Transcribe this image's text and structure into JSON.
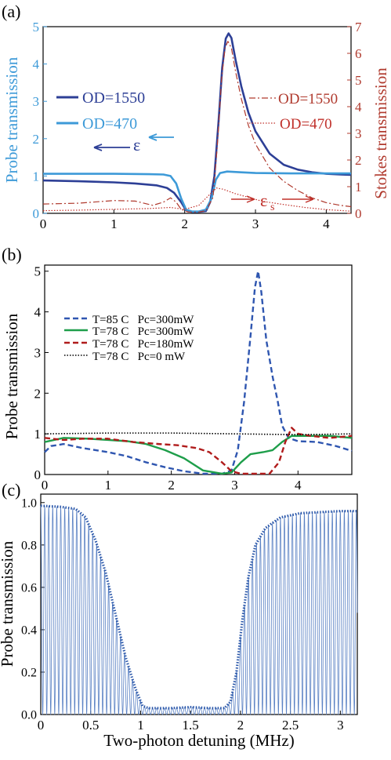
{
  "colors": {
    "dark_blue": "#2d3f96",
    "light_blue": "#3d9ad8",
    "dark_red": "#b03a2e",
    "red": "#c0302a",
    "green": "#1e9e4a",
    "dashed_blue": "#2f56b0",
    "dashed_red": "#b01c1c",
    "black": "#000000",
    "trace_blue": "#5b82c4",
    "envelope_blue": "#2855a8"
  },
  "chart_data": [
    {
      "type": "line",
      "panel_label": "(a)",
      "xlabel": "",
      "ylabel_left": "Probe transmission",
      "ylabel_right": "Stokes  transmission",
      "xlim": [
        0,
        4.35
      ],
      "ylim_left": [
        0,
        5
      ],
      "ylim_right": [
        0,
        7
      ],
      "x_ticks": [
        "0",
        "1",
        "2",
        "3",
        "4"
      ],
      "y_ticks_left": [
        "0",
        "1",
        "2",
        "3",
        "4",
        "5"
      ],
      "y_ticks_right": [
        "0",
        "1",
        "2",
        "3",
        "4",
        "5",
        "6",
        "7"
      ],
      "legend_left": [
        "OD=1550",
        "OD=470"
      ],
      "legend_right": [
        "OD=1550",
        "OD=470"
      ],
      "annotations": {
        "probe_arrow": "ε",
        "stokes_arrow": "ε",
        "stokes_sub": "s"
      },
      "series": [
        {
          "name": "OD=1550",
          "axis": "left",
          "style": "solid",
          "color_key": "dark_blue",
          "points": [
            [
              0,
              0.88
            ],
            [
              0.5,
              0.86
            ],
            [
              1.0,
              0.83
            ],
            [
              1.3,
              0.8
            ],
            [
              1.6,
              0.75
            ],
            [
              1.75,
              0.68
            ],
            [
              1.85,
              0.55
            ],
            [
              1.95,
              0.3
            ],
            [
              2.02,
              0.08
            ],
            [
              2.1,
              0.04
            ],
            [
              2.2,
              0.04
            ],
            [
              2.3,
              0.06
            ],
            [
              2.36,
              0.3
            ],
            [
              2.42,
              1.0
            ],
            [
              2.48,
              2.5
            ],
            [
              2.53,
              3.9
            ],
            [
              2.58,
              4.68
            ],
            [
              2.62,
              4.82
            ],
            [
              2.66,
              4.7
            ],
            [
              2.72,
              4.1
            ],
            [
              2.8,
              3.4
            ],
            [
              2.9,
              2.7
            ],
            [
              3.0,
              2.2
            ],
            [
              3.2,
              1.6
            ],
            [
              3.4,
              1.3
            ],
            [
              3.6,
              1.17
            ],
            [
              3.8,
              1.1
            ],
            [
              4.0,
              1.06
            ],
            [
              4.2,
              1.04
            ],
            [
              4.35,
              1.03
            ]
          ]
        },
        {
          "name": "OD=470",
          "axis": "left",
          "style": "solid",
          "color_key": "light_blue",
          "points": [
            [
              0,
              1.06
            ],
            [
              0.5,
              1.06
            ],
            [
              1.0,
              1.06
            ],
            [
              1.5,
              1.05
            ],
            [
              1.7,
              1.04
            ],
            [
              1.8,
              1.0
            ],
            [
              1.88,
              0.8
            ],
            [
              1.95,
              0.4
            ],
            [
              2.02,
              0.1
            ],
            [
              2.1,
              0.05
            ],
            [
              2.2,
              0.05
            ],
            [
              2.3,
              0.1
            ],
            [
              2.38,
              0.4
            ],
            [
              2.44,
              0.9
            ],
            [
              2.5,
              1.08
            ],
            [
              2.6,
              1.12
            ],
            [
              2.8,
              1.1
            ],
            [
              3.0,
              1.08
            ],
            [
              3.5,
              1.07
            ],
            [
              4.0,
              1.07
            ],
            [
              4.35,
              1.07
            ]
          ]
        },
        {
          "name": "OD=1550",
          "axis": "right",
          "style": "dashdot",
          "color_key": "dark_red",
          "points": [
            [
              0,
              0.35
            ],
            [
              0.5,
              0.38
            ],
            [
              1.0,
              0.48
            ],
            [
              1.3,
              0.46
            ],
            [
              1.55,
              0.3
            ],
            [
              1.7,
              0.42
            ],
            [
              1.8,
              0.58
            ],
            [
              1.88,
              0.42
            ],
            [
              1.95,
              0.15
            ],
            [
              2.05,
              0.05
            ],
            [
              2.2,
              0.05
            ],
            [
              2.3,
              0.1
            ],
            [
              2.4,
              0.6
            ],
            [
              2.46,
              2.5
            ],
            [
              2.52,
              5.0
            ],
            [
              2.57,
              6.2
            ],
            [
              2.61,
              6.45
            ],
            [
              2.66,
              6.2
            ],
            [
              2.72,
              5.3
            ],
            [
              2.8,
              4.3
            ],
            [
              2.9,
              3.3
            ],
            [
              3.0,
              2.6
            ],
            [
              3.2,
              1.7
            ],
            [
              3.4,
              1.2
            ],
            [
              3.6,
              0.85
            ],
            [
              3.8,
              0.58
            ],
            [
              4.0,
              0.4
            ],
            [
              4.2,
              0.3
            ],
            [
              4.35,
              0.25
            ]
          ]
        },
        {
          "name": "OD=470",
          "axis": "right",
          "style": "dotted",
          "color_key": "red",
          "points": [
            [
              0,
              0.1
            ],
            [
              0.5,
              0.12
            ],
            [
              1.0,
              0.15
            ],
            [
              1.5,
              0.18
            ],
            [
              1.8,
              0.22
            ],
            [
              2.0,
              0.15
            ],
            [
              2.2,
              0.3
            ],
            [
              2.35,
              0.7
            ],
            [
              2.45,
              0.95
            ],
            [
              2.55,
              0.9
            ],
            [
              2.7,
              0.75
            ],
            [
              2.9,
              0.6
            ],
            [
              3.1,
              0.45
            ],
            [
              3.4,
              0.33
            ],
            [
              3.7,
              0.22
            ],
            [
              4.0,
              0.14
            ],
            [
              4.35,
              0.08
            ]
          ]
        }
      ]
    },
    {
      "type": "line",
      "panel_label": "(b)",
      "xlabel": "",
      "ylabel": "Probe transmission",
      "xlim": [
        0,
        4.85
      ],
      "ylim": [
        0,
        5.15
      ],
      "x_ticks": [
        "0",
        "1",
        "2",
        "3",
        "4"
      ],
      "y_ticks": [
        "0",
        "1",
        "2",
        "3",
        "4",
        "5"
      ],
      "legend": [
        "T=85 C   Pc=300mW",
        "T=78 C   Pc=300mW",
        "T=78 C   Pc=180mW",
        "T=78 C   Pc=0 mW"
      ],
      "series": [
        {
          "name": "T=85 C   Pc=300mW",
          "style": "dashed",
          "color_key": "dashed_blue",
          "points": [
            [
              0,
              0.55
            ],
            [
              0.1,
              0.7
            ],
            [
              0.3,
              0.75
            ],
            [
              0.6,
              0.65
            ],
            [
              1.0,
              0.55
            ],
            [
              1.3,
              0.45
            ],
            [
              1.6,
              0.3
            ],
            [
              1.9,
              0.18
            ],
            [
              2.2,
              0.08
            ],
            [
              2.5,
              0.02
            ],
            [
              2.8,
              0.02
            ],
            [
              2.95,
              0.1
            ],
            [
              3.05,
              0.6
            ],
            [
              3.15,
              1.8
            ],
            [
              3.25,
              3.4
            ],
            [
              3.32,
              4.6
            ],
            [
              3.37,
              5.0
            ],
            [
              3.42,
              4.5
            ],
            [
              3.5,
              3.3
            ],
            [
              3.6,
              2.4
            ],
            [
              3.68,
              1.8
            ],
            [
              3.75,
              1.2
            ],
            [
              3.85,
              0.9
            ],
            [
              4.0,
              0.82
            ],
            [
              4.3,
              0.8
            ],
            [
              4.6,
              0.7
            ],
            [
              4.85,
              0.58
            ]
          ]
        },
        {
          "name": "T=78 C   Pc=300mW",
          "style": "solid",
          "color_key": "green",
          "points": [
            [
              0,
              0.8
            ],
            [
              0.3,
              0.9
            ],
            [
              0.7,
              0.88
            ],
            [
              1.0,
              0.85
            ],
            [
              1.3,
              0.82
            ],
            [
              1.6,
              0.75
            ],
            [
              1.9,
              0.6
            ],
            [
              2.2,
              0.4
            ],
            [
              2.5,
              0.1
            ],
            [
              2.8,
              0.02
            ],
            [
              2.95,
              0.05
            ],
            [
              3.1,
              0.3
            ],
            [
              3.25,
              0.5
            ],
            [
              3.45,
              0.55
            ],
            [
              3.6,
              0.6
            ],
            [
              3.75,
              0.8
            ],
            [
              3.9,
              0.95
            ],
            [
              4.2,
              0.95
            ],
            [
              4.5,
              0.95
            ],
            [
              4.85,
              0.9
            ]
          ]
        },
        {
          "name": "T=78 C   Pc=180mW",
          "style": "dashed",
          "color_key": "dashed_red",
          "points": [
            [
              0,
              0.9
            ],
            [
              0.3,
              0.85
            ],
            [
              0.6,
              0.88
            ],
            [
              1.0,
              0.88
            ],
            [
              1.4,
              0.8
            ],
            [
              1.8,
              0.75
            ],
            [
              2.1,
              0.72
            ],
            [
              2.4,
              0.65
            ],
            [
              2.6,
              0.55
            ],
            [
              2.8,
              0.3
            ],
            [
              2.95,
              0.08
            ],
            [
              3.1,
              0.02
            ],
            [
              3.3,
              0.02
            ],
            [
              3.55,
              0.02
            ],
            [
              3.7,
              0.3
            ],
            [
              3.8,
              0.8
            ],
            [
              3.9,
              1.15
            ],
            [
              4.0,
              1.0
            ],
            [
              4.2,
              0.95
            ],
            [
              4.5,
              0.9
            ],
            [
              4.85,
              0.95
            ]
          ]
        },
        {
          "name": "T=78 C   Pc=0 mW",
          "style": "dotted",
          "color_key": "black",
          "points": [
            [
              0,
              1.0
            ],
            [
              1.0,
              1.02
            ],
            [
              2.0,
              1.02
            ],
            [
              3.0,
              1.0
            ],
            [
              4.0,
              0.98
            ],
            [
              4.85,
              1.0
            ]
          ]
        }
      ]
    },
    {
      "type": "line",
      "panel_label": "(c)",
      "xlabel": "Two-photon detuning  (MHz)",
      "ylabel": "Probe transmission",
      "xlim": [
        0,
        3.17
      ],
      "ylim": [
        0,
        1.04
      ],
      "x_ticks": [
        "0",
        "0.5",
        "1",
        "1.5",
        "2",
        "2.5",
        "3"
      ],
      "y_ticks": [
        "0.0",
        "0.2",
        "0.4",
        "0.6",
        "0.8",
        "1.0"
      ],
      "oscillation_period": 0.04,
      "series": [
        {
          "name": "",
          "style": "oscillating",
          "color_key": "trace_blue",
          "envelope_ref": "envelope"
        },
        {
          "name": "",
          "style": "dotted",
          "color_key": "envelope_blue",
          "id": "envelope",
          "points": [
            [
              0,
              0.985
            ],
            [
              0.2,
              0.98
            ],
            [
              0.35,
              0.97
            ],
            [
              0.45,
              0.93
            ],
            [
              0.55,
              0.82
            ],
            [
              0.65,
              0.67
            ],
            [
              0.75,
              0.47
            ],
            [
              0.85,
              0.27
            ],
            [
              0.95,
              0.12
            ],
            [
              1.02,
              0.04
            ],
            [
              1.08,
              0.03
            ],
            [
              1.3,
              0.03
            ],
            [
              1.5,
              0.035
            ],
            [
              1.7,
              0.03
            ],
            [
              1.84,
              0.03
            ],
            [
              1.9,
              0.06
            ],
            [
              1.96,
              0.2
            ],
            [
              2.02,
              0.45
            ],
            [
              2.08,
              0.65
            ],
            [
              2.15,
              0.8
            ],
            [
              2.25,
              0.88
            ],
            [
              2.4,
              0.93
            ],
            [
              2.6,
              0.95
            ],
            [
              2.8,
              0.955
            ],
            [
              3.0,
              0.96
            ],
            [
              3.17,
              0.96
            ]
          ]
        }
      ]
    }
  ]
}
